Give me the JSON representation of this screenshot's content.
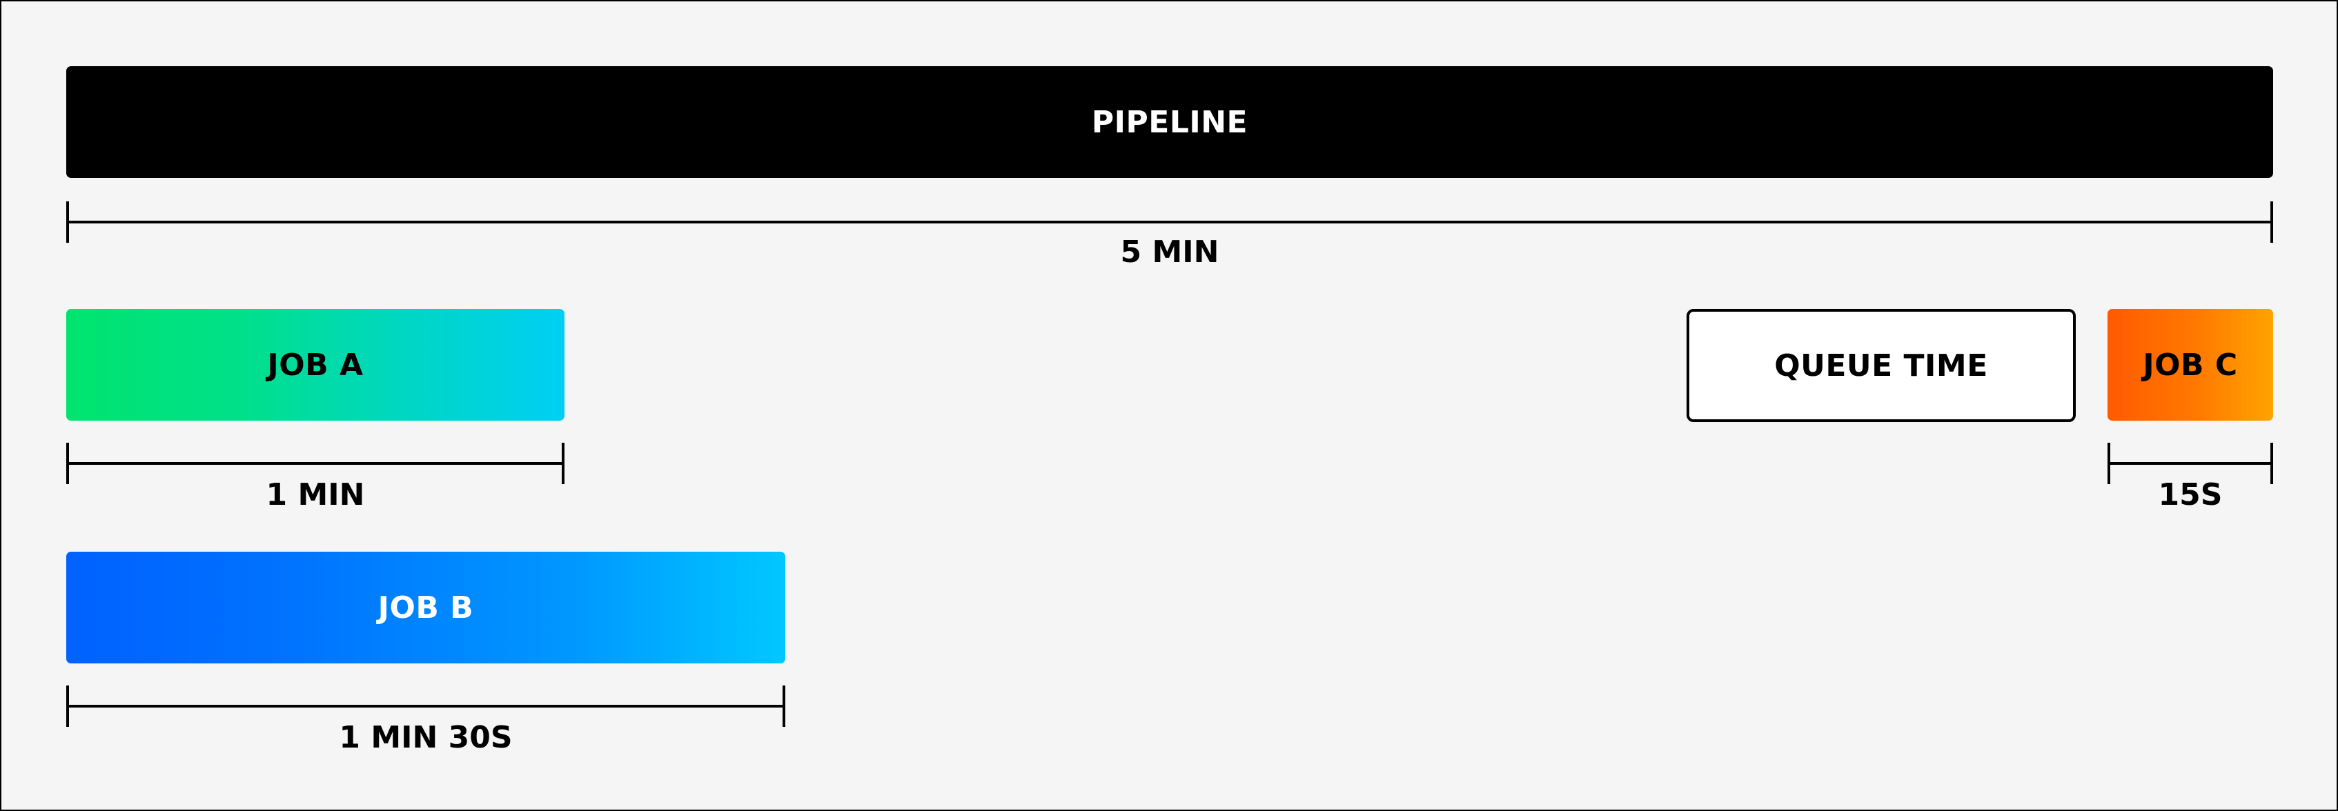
{
  "diagram": {
    "pipeline": {
      "label": "PIPELINE",
      "duration_label": "5 MIN",
      "color": "#000000"
    },
    "jobs": [
      {
        "id": "job-a",
        "label": "JOB A",
        "duration_label": "1 MIN",
        "gradient": [
          "#00e46e",
          "#00cff5"
        ]
      },
      {
        "id": "job-b",
        "label": "JOB B",
        "duration_label": "1 MIN 30S",
        "gradient": [
          "#0061ff",
          "#00c8ff"
        ]
      },
      {
        "id": "job-c",
        "label": "JOB C",
        "duration_label": "15S",
        "gradient": [
          "#ff5a00",
          "#ffa300"
        ]
      }
    ],
    "queue": {
      "label": "QUEUE TIME",
      "fill": "#ffffff",
      "border": "#000000"
    },
    "background": "#f5f5f5"
  }
}
